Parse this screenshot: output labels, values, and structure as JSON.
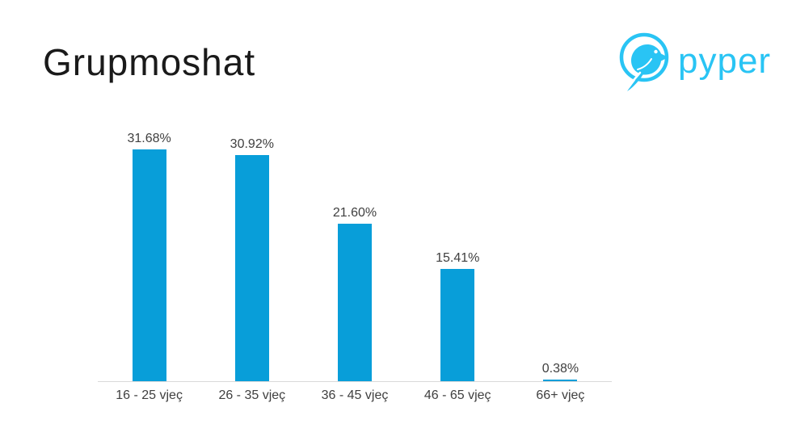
{
  "header": {
    "title": "Grupmoshat",
    "logo": {
      "brand": "pyper",
      "icon": "bird-in-circle-icon",
      "color": "#29C4F4"
    }
  },
  "chart_data": {
    "type": "bar",
    "title": "Grupmoshat",
    "categories": [
      "16 - 25 vjeç",
      "26 - 35 vjeç",
      "36 - 45 vjeç",
      "46 - 65 vjeç",
      "66+ vjeç"
    ],
    "values": [
      31.68,
      30.92,
      21.6,
      15.41,
      0.38
    ],
    "value_labels": [
      "31.68%",
      "30.92%",
      "21.60%",
      "15.41%",
      "0.38%"
    ],
    "unit": "%",
    "xlabel": "",
    "ylabel": "",
    "ylim": [
      0,
      35.5
    ],
    "grid": false,
    "legend": false,
    "value_labels_position": "above-bars",
    "bar_color": "#089ED9",
    "axis_line_color": "#D9D9D9",
    "label_color": "#3F3F3F"
  }
}
